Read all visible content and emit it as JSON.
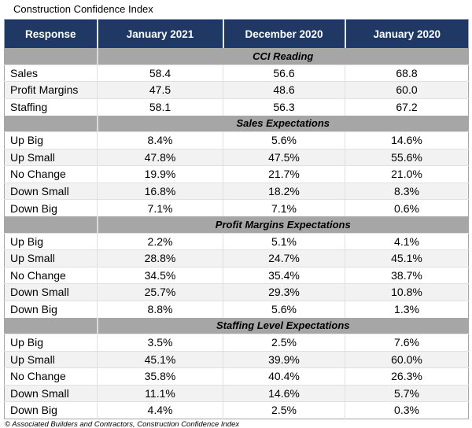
{
  "colors": {
    "header_bg": "#1F3864",
    "header_text": "#FFFFFF",
    "section_bg": "#A6A6A6",
    "stripe_bg": "#F2F2F2",
    "grid_line": "#E0E0E0",
    "outer_border": "#A6A6A6"
  },
  "chart_data": {
    "type": "table",
    "title": "Construction Confidence Index",
    "columns": [
      "Response",
      "January 2021",
      "December 2020",
      "January 2020"
    ],
    "sections": [
      {
        "title": "CCI Reading",
        "rows": [
          [
            "Sales",
            "58.4",
            "56.6",
            "68.8"
          ],
          [
            "Profit Margins",
            "47.5",
            "48.6",
            "60.0"
          ],
          [
            "Staffing",
            "58.1",
            "56.3",
            "67.2"
          ]
        ]
      },
      {
        "title": "Sales Expectations",
        "rows": [
          [
            "Up Big",
            "8.4%",
            "5.6%",
            "14.6%"
          ],
          [
            "Up Small",
            "47.8%",
            "47.5%",
            "55.6%"
          ],
          [
            "No Change",
            "19.9%",
            "21.7%",
            "21.0%"
          ],
          [
            "Down Small",
            "16.8%",
            "18.2%",
            "8.3%"
          ],
          [
            "Down Big",
            "7.1%",
            "7.1%",
            "0.6%"
          ]
        ]
      },
      {
        "title": "Profit Margins Expectations",
        "rows": [
          [
            "Up Big",
            "2.2%",
            "5.1%",
            "4.1%"
          ],
          [
            "Up Small",
            "28.8%",
            "24.7%",
            "45.1%"
          ],
          [
            "No Change",
            "34.5%",
            "35.4%",
            "38.7%"
          ],
          [
            "Down Small",
            "25.7%",
            "29.3%",
            "10.8%"
          ],
          [
            "Down Big",
            "8.8%",
            "5.6%",
            "1.3%"
          ]
        ]
      },
      {
        "title": "Staffing Level Expectations",
        "rows": [
          [
            "Up Big",
            "3.5%",
            "2.5%",
            "7.6%"
          ],
          [
            "Up Small",
            "45.1%",
            "39.9%",
            "60.0%"
          ],
          [
            "No Change",
            "35.8%",
            "40.4%",
            "26.3%"
          ],
          [
            "Down Small",
            "11.1%",
            "14.6%",
            "5.7%"
          ],
          [
            "Down Big",
            "4.4%",
            "2.5%",
            "0.3%"
          ]
        ]
      }
    ],
    "source_note": "© Associated Builders and Contractors, Construction Confidence Index"
  }
}
